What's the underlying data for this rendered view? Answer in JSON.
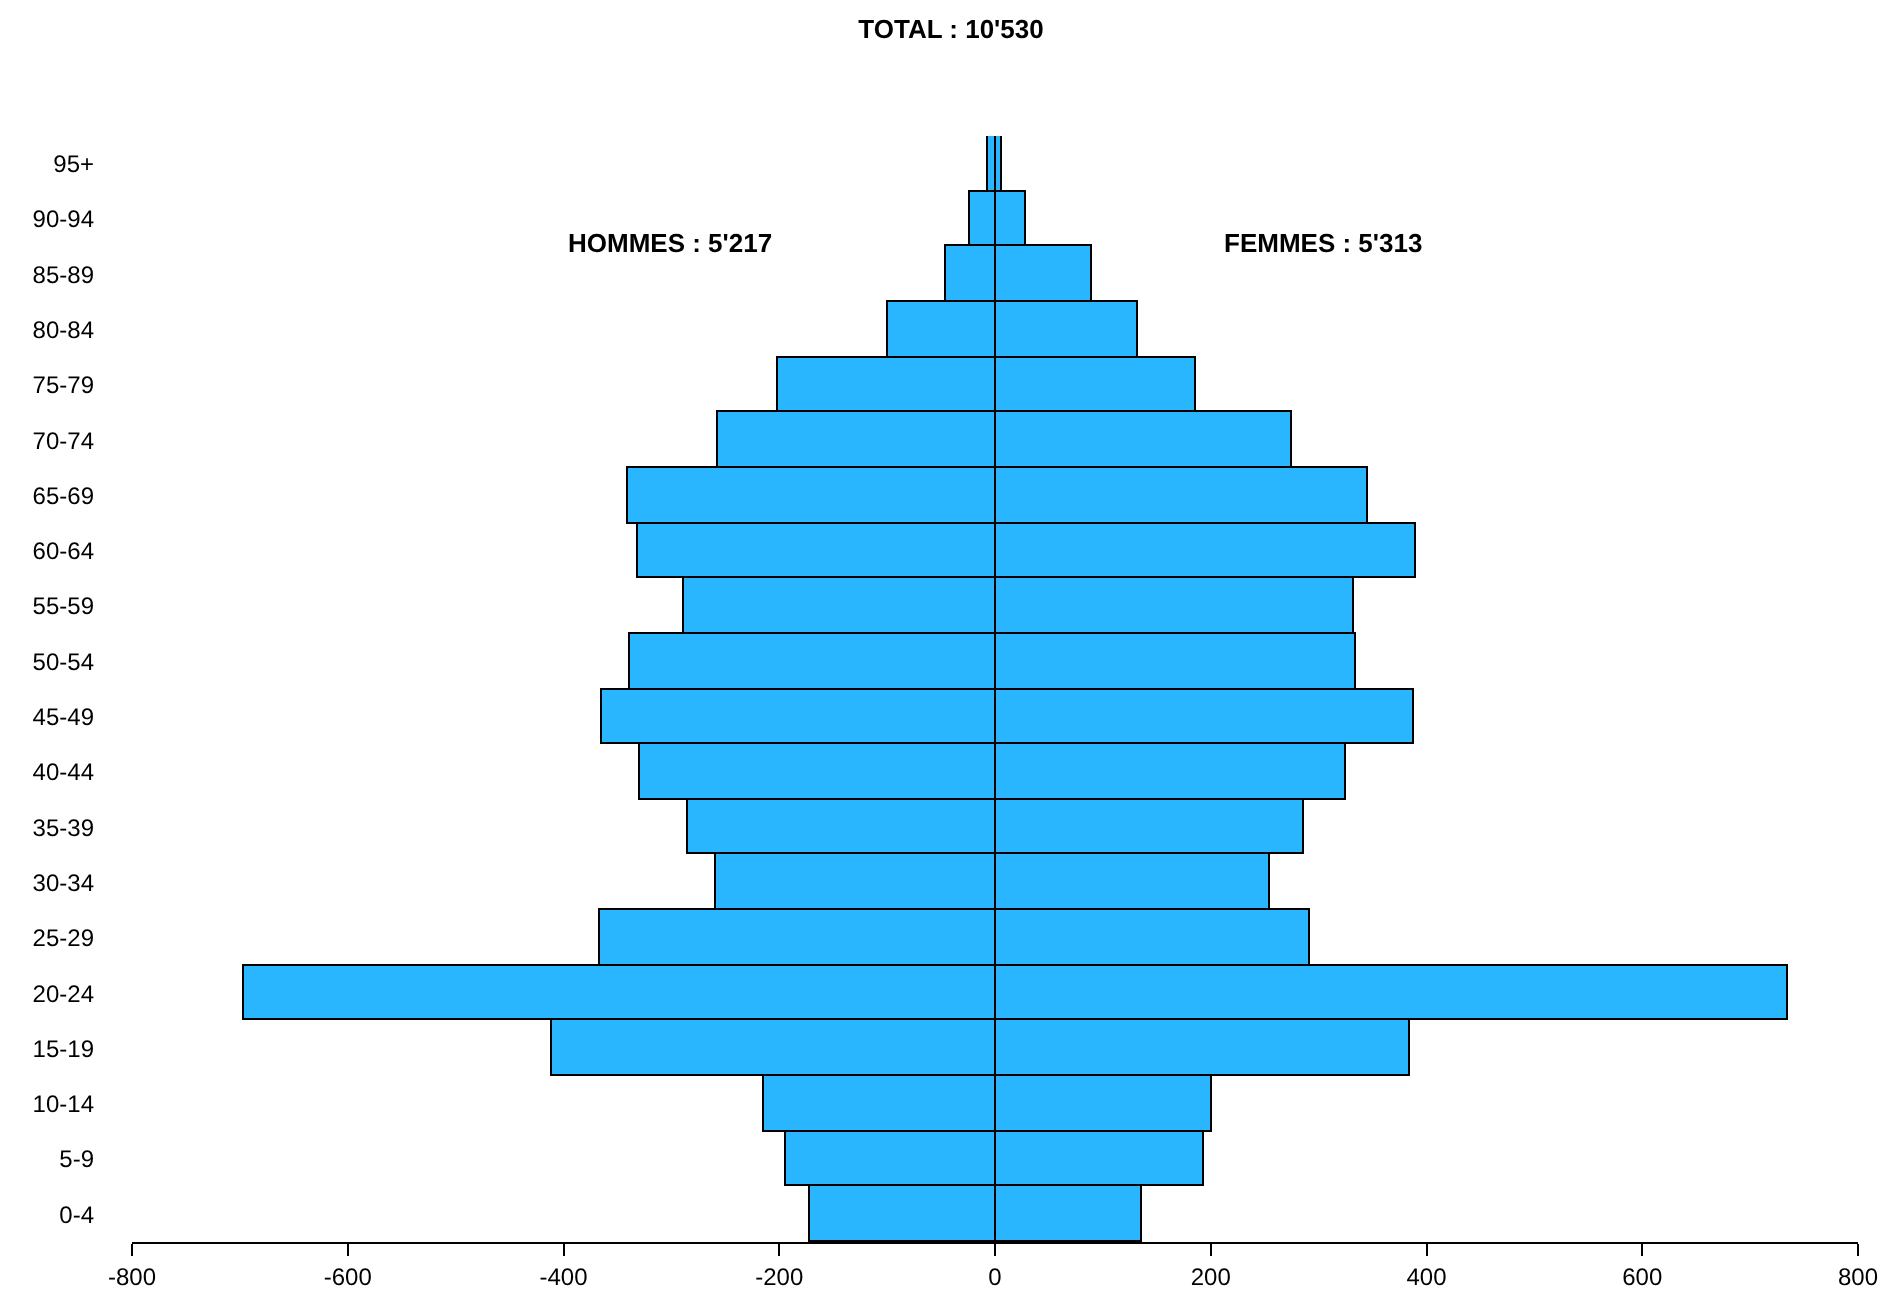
{
  "chart_data": {
    "type": "bar",
    "orientation": "horizontal",
    "title": "TOTAL : 10'530",
    "categories": [
      "95+",
      "90-94",
      "85-89",
      "80-84",
      "75-79",
      "70-74",
      "65-69",
      "60-64",
      "55-59",
      "50-54",
      "45-49",
      "40-44",
      "35-39",
      "30-34",
      "25-29",
      "20-24",
      "15-19",
      "10-14",
      "5-9",
      "0-4"
    ],
    "series": [
      {
        "color": "#29b6ff",
        "values": [
          -6,
          -24,
          -46,
          -99,
          -202,
          -257,
          -340,
          -331,
          -289,
          -338,
          -364,
          -329,
          -285,
          -259,
          -367,
          -697,
          -410,
          -215,
          -193,
          -171
        ]
      },
      {
        "color": "#29b6ff",
        "values": [
          7,
          29,
          90,
          132,
          187,
          275,
          345,
          391,
          332,
          334,
          389,
          325,
          286,
          255,
          292,
          736,
          384,
          202,
          193,
          137
        ]
      }
    ],
    "annotations": [
      "HOMMES : 5'217",
      "FEMMES : 5'313"
    ],
    "xlim": [
      -800,
      800
    ],
    "xticks": [
      -800,
      -600,
      -400,
      -200,
      0,
      200,
      400,
      600,
      800
    ],
    "stacked": true
  }
}
